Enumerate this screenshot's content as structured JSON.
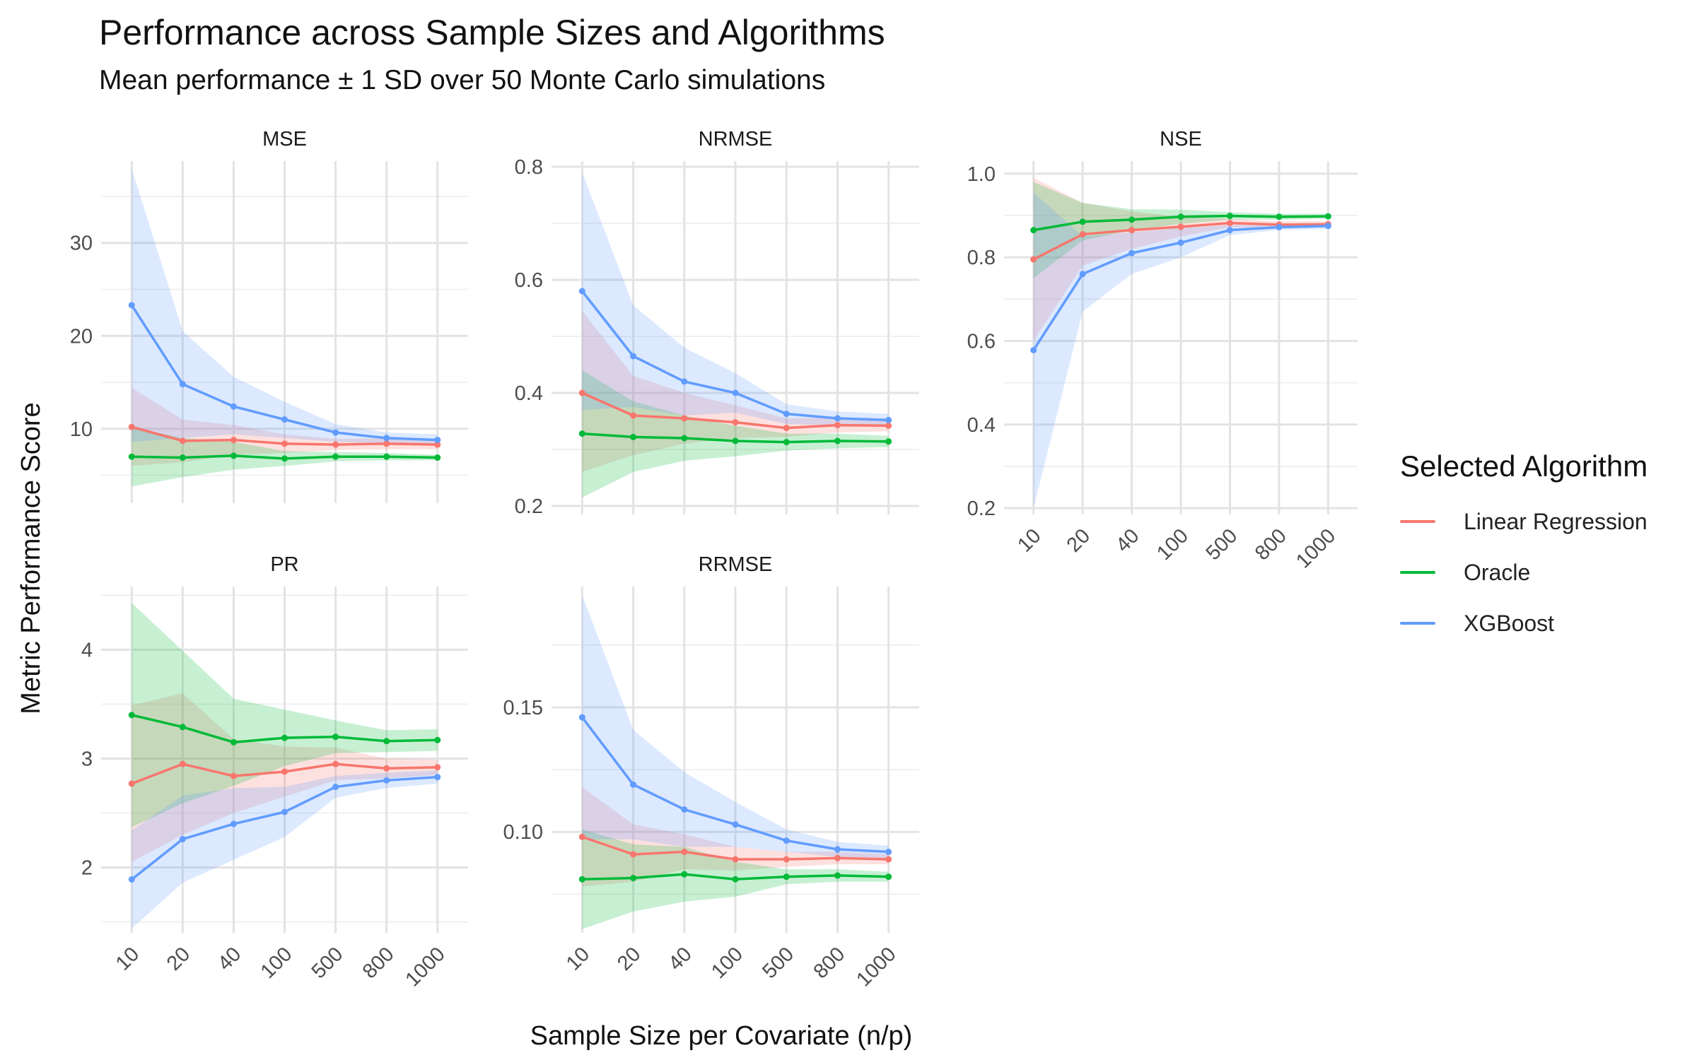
{
  "title": "Performance across Sample Sizes and Algorithms",
  "subtitle": "Mean performance ± 1 SD over 50 Monte Carlo simulations",
  "legend": {
    "title": "Selected Algorithm",
    "items": [
      {
        "label": "Linear Regression",
        "color": "#F8766D"
      },
      {
        "label": "Oracle",
        "color": "#00BA38"
      },
      {
        "label": "XGBoost",
        "color": "#619CFF"
      }
    ]
  },
  "chart_data": {
    "type": "line",
    "title": "Performance across Sample Sizes and Algorithms",
    "subtitle": "Mean performance ± 1 SD over 50 Monte Carlo simulations",
    "xlabel": "Sample Size per Covariate (n/p)",
    "ylabel": "Metric Performance Score",
    "categories": [
      "10",
      "20",
      "40",
      "100",
      "500",
      "800",
      "1000"
    ],
    "grid": true,
    "legend_position": "right",
    "series_colors": {
      "Linear Regression": "#F8766D",
      "Oracle": "#00BA38",
      "XGBoost": "#619CFF"
    },
    "panels": [
      {
        "name": "MSE",
        "ylim": [
          2,
          38.8
        ],
        "yticks": [
          10,
          20,
          30
        ],
        "yticklabels": [
          "10",
          "20",
          "30"
        ],
        "series": [
          {
            "name": "Linear Regression",
            "values": [
              10.2,
              8.7,
              8.8,
              8.4,
              8.3,
              8.4,
              8.3
            ],
            "lower": [
              6.0,
              6.4,
              7.2,
              7.4,
              7.7,
              7.8,
              7.8
            ],
            "upper": [
              14.4,
              11.0,
              10.4,
              9.4,
              8.9,
              9.0,
              8.8
            ]
          },
          {
            "name": "Oracle",
            "values": [
              7.0,
              6.9,
              7.1,
              6.8,
              7.0,
              7.0,
              6.9
            ],
            "lower": [
              3.8,
              4.8,
              5.6,
              6.0,
              6.5,
              6.6,
              6.6
            ],
            "upper": [
              10.2,
              9.0,
              8.6,
              7.6,
              7.5,
              7.4,
              7.2
            ]
          },
          {
            "name": "XGBoost",
            "values": [
              23.3,
              14.8,
              12.4,
              11.0,
              9.6,
              9.0,
              8.8
            ],
            "lower": [
              8.6,
              9.0,
              9.4,
              9.0,
              8.6,
              8.4,
              8.2
            ],
            "upper": [
              38.0,
              20.5,
              15.6,
              12.9,
              10.5,
              9.6,
              9.4
            ]
          }
        ]
      },
      {
        "name": "NRMSE",
        "ylim": [
          0.185,
          0.81
        ],
        "yticks": [
          0.2,
          0.4,
          0.6,
          0.8
        ],
        "yticklabels": [
          "0.2",
          "0.4",
          "0.6",
          "0.8"
        ],
        "series": [
          {
            "name": "Linear Regression",
            "values": [
              0.4,
              0.36,
              0.355,
              0.348,
              0.338,
              0.343,
              0.342
            ],
            "lower": [
              0.26,
              0.29,
              0.31,
              0.32,
              0.322,
              0.33,
              0.332
            ],
            "upper": [
              0.545,
              0.43,
              0.4,
              0.378,
              0.355,
              0.356,
              0.352
            ]
          },
          {
            "name": "Oracle",
            "values": [
              0.328,
              0.322,
              0.32,
              0.315,
              0.313,
              0.315,
              0.314
            ],
            "lower": [
              0.215,
              0.26,
              0.28,
              0.288,
              0.298,
              0.302,
              0.304
            ],
            "upper": [
              0.44,
              0.385,
              0.36,
              0.342,
              0.328,
              0.328,
              0.324
            ]
          },
          {
            "name": "XGBoost",
            "values": [
              0.58,
              0.465,
              0.42,
              0.4,
              0.363,
              0.355,
              0.352
            ],
            "lower": [
              0.37,
              0.375,
              0.36,
              0.365,
              0.345,
              0.343,
              0.341
            ],
            "upper": [
              0.79,
              0.555,
              0.48,
              0.435,
              0.38,
              0.367,
              0.363
            ]
          }
        ]
      },
      {
        "name": "NSE",
        "ylim": [
          0.185,
          1.03
        ],
        "yticks": [
          0.2,
          0.4,
          0.6,
          0.8,
          1.0
        ],
        "yticklabels": [
          "0.2",
          "0.4",
          "0.6",
          "0.8",
          "1.0"
        ],
        "series": [
          {
            "name": "Linear Regression",
            "values": [
              0.795,
              0.855,
              0.865,
              0.873,
              0.882,
              0.878,
              0.879
            ],
            "lower": [
              0.6,
              0.78,
              0.82,
              0.85,
              0.872,
              0.87,
              0.872
            ],
            "upper": [
              0.99,
              0.93,
              0.91,
              0.896,
              0.892,
              0.886,
              0.886
            ]
          },
          {
            "name": "Oracle",
            "values": [
              0.865,
              0.885,
              0.89,
              0.897,
              0.899,
              0.897,
              0.898
            ],
            "lower": [
              0.75,
              0.84,
              0.865,
              0.88,
              0.89,
              0.89,
              0.892
            ],
            "upper": [
              0.98,
              0.93,
              0.915,
              0.914,
              0.908,
              0.904,
              0.904
            ]
          },
          {
            "name": "XGBoost",
            "values": [
              0.578,
              0.76,
              0.81,
              0.835,
              0.865,
              0.872,
              0.875
            ],
            "lower": [
              0.2,
              0.67,
              0.76,
              0.8,
              0.853,
              0.865,
              0.868
            ],
            "upper": [
              0.955,
              0.85,
              0.86,
              0.87,
              0.877,
              0.879,
              0.882
            ]
          }
        ]
      },
      {
        "name": "PR",
        "ylim": [
          1.4,
          4.58
        ],
        "yticks": [
          2,
          3,
          4
        ],
        "yticklabels": [
          "2",
          "3",
          "4"
        ],
        "series": [
          {
            "name": "Linear Regression",
            "values": [
              2.77,
              2.95,
              2.84,
              2.88,
              2.95,
              2.91,
              2.92
            ],
            "lower": [
              2.05,
              2.3,
              2.5,
              2.65,
              2.8,
              2.82,
              2.85
            ],
            "upper": [
              3.49,
              3.6,
              3.18,
              3.11,
              3.1,
              3.0,
              2.99
            ]
          },
          {
            "name": "Oracle",
            "values": [
              3.4,
              3.29,
              3.15,
              3.19,
              3.2,
              3.16,
              3.17
            ],
            "lower": [
              2.37,
              2.59,
              2.75,
              2.93,
              3.05,
              3.06,
              3.07
            ],
            "upper": [
              4.43,
              3.99,
              3.55,
              3.45,
              3.35,
              3.26,
              3.27
            ]
          },
          {
            "name": "XGBoost",
            "values": [
              1.89,
              2.26,
              2.4,
              2.51,
              2.74,
              2.8,
              2.83
            ],
            "lower": [
              1.44,
              1.86,
              2.07,
              2.28,
              2.64,
              2.73,
              2.77
            ],
            "upper": [
              2.34,
              2.66,
              2.73,
              2.74,
              2.84,
              2.87,
              2.89
            ]
          }
        ]
      },
      {
        "name": "RRMSE",
        "ylim": [
          0.0595,
          0.1985
        ],
        "yticks": [
          0.1,
          0.15
        ],
        "yticklabels": [
          "0.10",
          "0.15"
        ],
        "series": [
          {
            "name": "Linear Regression",
            "values": [
              0.098,
              0.091,
              0.092,
              0.089,
              0.089,
              0.0895,
              0.089
            ],
            "lower": [
              0.078,
              0.08,
              0.085,
              0.0845,
              0.086,
              0.087,
              0.087
            ],
            "upper": [
              0.118,
              0.103,
              0.099,
              0.094,
              0.092,
              0.092,
              0.091
            ]
          },
          {
            "name": "Oracle",
            "values": [
              0.081,
              0.0815,
              0.083,
              0.081,
              0.082,
              0.0825,
              0.082
            ],
            "lower": [
              0.061,
              0.068,
              0.072,
              0.074,
              0.079,
              0.08,
              0.08
            ],
            "upper": [
              0.101,
              0.095,
              0.094,
              0.088,
              0.085,
              0.085,
              0.084
            ]
          },
          {
            "name": "XGBoost",
            "values": [
              0.146,
              0.119,
              0.109,
              0.103,
              0.0965,
              0.093,
              0.092
            ],
            "lower": [
              0.097,
              0.097,
              0.094,
              0.094,
              0.092,
              0.09,
              0.0895
            ],
            "upper": [
              0.195,
              0.141,
              0.124,
              0.112,
              0.101,
              0.096,
              0.0945
            ]
          }
        ]
      }
    ]
  }
}
